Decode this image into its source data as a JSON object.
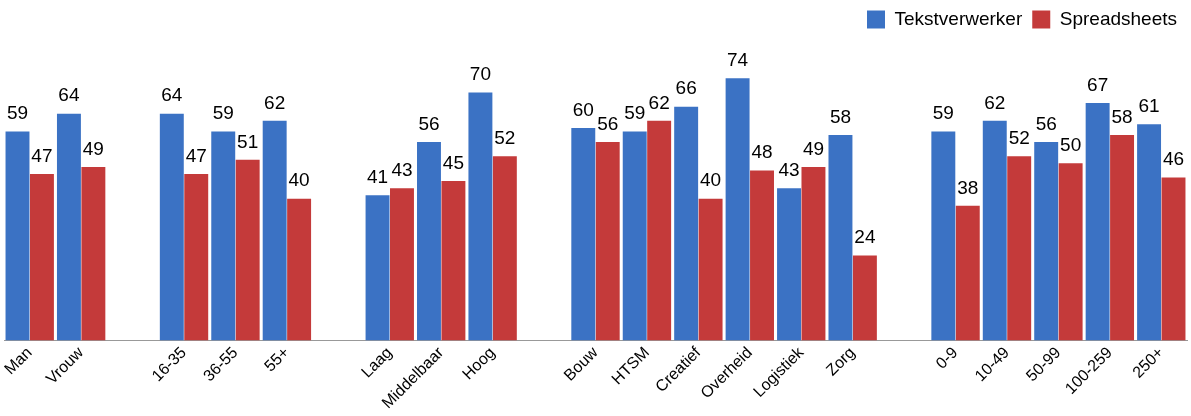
{
  "chart_data": {
    "type": "bar",
    "categories": [
      "Man",
      "Vrouw",
      null,
      "16-35",
      "36-55",
      "55+",
      null,
      "Laag",
      "Middelbaar",
      "Hoog",
      null,
      "Bouw",
      "HTSM",
      "Creatief",
      "Overheid",
      "Logistiek",
      "Zorg",
      null,
      "0-9",
      "10-49",
      "50-99",
      "100-259",
      "250+"
    ],
    "series": [
      {
        "name": "Tekstverwerker",
        "color": "#3b72c4",
        "values": [
          59,
          64,
          null,
          64,
          59,
          62,
          null,
          41,
          56,
          70,
          null,
          60,
          59,
          66,
          74,
          43,
          58,
          null,
          59,
          62,
          56,
          67,
          61
        ]
      },
      {
        "name": "Spreadsheets",
        "color": "#c43a3a",
        "values": [
          47,
          49,
          null,
          47,
          51,
          40,
          null,
          43,
          45,
          52,
          null,
          56,
          62,
          40,
          48,
          49,
          24,
          null,
          38,
          52,
          50,
          58,
          46
        ]
      }
    ],
    "data_labels": true,
    "legend": "top right",
    "grid": false
  }
}
